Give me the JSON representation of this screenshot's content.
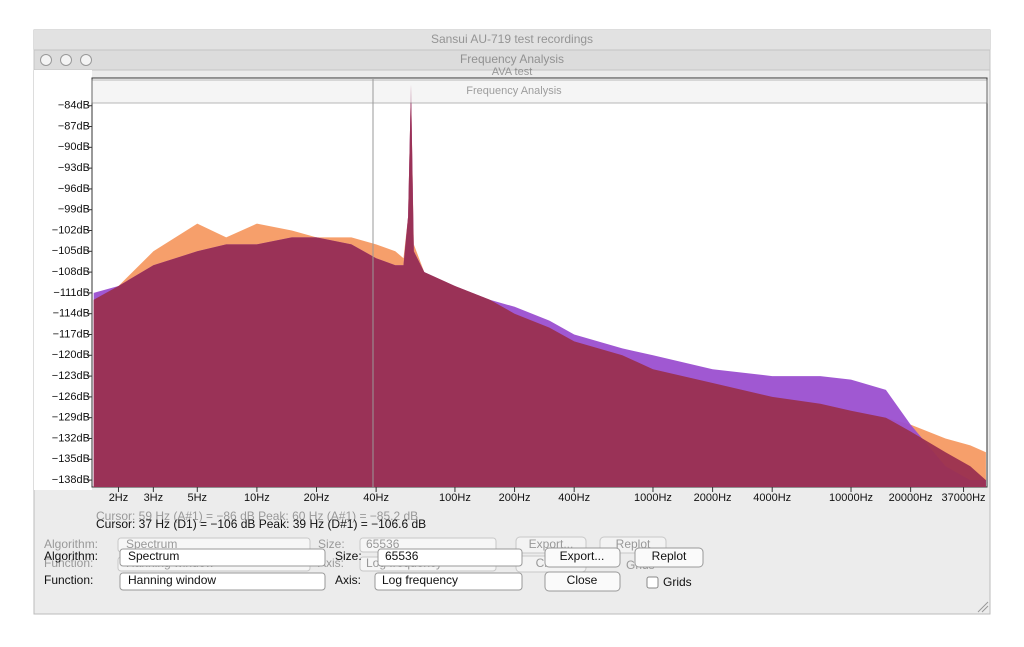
{
  "windows": {
    "main_title": "Sansui AU-719 test recordings",
    "analysis_title": "Frequency Analysis",
    "back_title": "AVA test",
    "inner_title": "Frequency Analysis"
  },
  "chart_data": {
    "type": "area",
    "x_scale": "log",
    "xlim": [
      1.47,
      48600
    ],
    "ylim": [
      -139,
      -80
    ],
    "xticks": [
      {
        "value": 2,
        "label": "2Hz"
      },
      {
        "value": 3,
        "label": "3Hz"
      },
      {
        "value": 5,
        "label": "5Hz"
      },
      {
        "value": 10,
        "label": "10Hz"
      },
      {
        "value": 20,
        "label": "20Hz"
      },
      {
        "value": 40,
        "label": "40Hz"
      },
      {
        "value": 100,
        "label": "100Hz"
      },
      {
        "value": 200,
        "label": "200Hz"
      },
      {
        "value": 400,
        "label": "400Hz"
      },
      {
        "value": 1000,
        "label": "1000Hz"
      },
      {
        "value": 2000,
        "label": "2000Hz"
      },
      {
        "value": 4000,
        "label": "4000Hz"
      },
      {
        "value": 10000,
        "label": "10000Hz"
      },
      {
        "value": 20000,
        "label": "20000Hz"
      },
      {
        "value": 37000,
        "label": "37000Hz"
      }
    ],
    "yticks": [
      {
        "value": -84,
        "label": "−84dB"
      },
      {
        "value": -87,
        "label": "−87dB"
      },
      {
        "value": -90,
        "label": "−90dB"
      },
      {
        "value": -93,
        "label": "−93dB"
      },
      {
        "value": -96,
        "label": "−96dB"
      },
      {
        "value": -99,
        "label": "−99dB"
      },
      {
        "value": -102,
        "label": "−102dB"
      },
      {
        "value": -105,
        "label": "−105dB"
      },
      {
        "value": -108,
        "label": "−108dB"
      },
      {
        "value": -111,
        "label": "−111dB"
      },
      {
        "value": -114,
        "label": "−114dB"
      },
      {
        "value": -117,
        "label": "−117dB"
      },
      {
        "value": -120,
        "label": "−120dB"
      },
      {
        "value": -123,
        "label": "−123dB"
      },
      {
        "value": -126,
        "label": "−126dB"
      },
      {
        "value": -129,
        "label": "−129dB"
      },
      {
        "value": -132,
        "label": "−132dB"
      },
      {
        "value": -135,
        "label": "−135dB"
      },
      {
        "value": -138,
        "label": "−138dB"
      }
    ],
    "x": [
      1.5,
      2,
      3,
      5,
      7,
      10,
      15,
      20,
      30,
      40,
      50,
      55,
      58,
      60,
      62,
      70,
      100,
      150,
      200,
      300,
      400,
      700,
      1000,
      2000,
      4000,
      7000,
      10000,
      15000,
      20000,
      30000,
      40000,
      48000
    ],
    "series": [
      {
        "color": "#f59a63",
        "values": [
          -112,
          -110,
          -105,
          -101,
          -103,
          -101,
          -102,
          -103,
          -103,
          -104,
          -105,
          -106,
          -100,
          -81,
          -104,
          -108,
          -110,
          -112,
          -114,
          -116,
          -118,
          -120,
          -122,
          -124,
          -126,
          -127,
          -128,
          -129,
          -130,
          -132,
          -133,
          -134
        ]
      },
      {
        "color": "#9b4fd0",
        "values": [
          -111,
          -110,
          -107,
          -105,
          -104,
          -104,
          -103,
          -103,
          -104,
          -106,
          -107,
          -107,
          -100,
          -81,
          -105,
          -108,
          -110,
          -112,
          -113,
          -115,
          -117,
          -119,
          -120,
          -122,
          -123,
          -123,
          -123.5,
          -125,
          -130,
          -136,
          -138,
          -138
        ]
      },
      {
        "color": "#9a3050",
        "values": [
          -112,
          -110,
          -107,
          -105,
          -104,
          -104,
          -103,
          -103,
          -104,
          -106,
          -107,
          -107,
          -100,
          -81,
          -105,
          -108,
          -110,
          -112,
          -114,
          -116,
          -118,
          -120,
          -122,
          -124,
          -126,
          -127,
          -128,
          -129,
          -131,
          -134,
          -136,
          -138
        ]
      }
    ]
  },
  "cursor_back": "Cursor: 59 Hz (A#1) = −86 dB    Peak: 60 Hz (A#1) = −85.2 dB",
  "cursor": "Cursor: 37 Hz (D1) = −106 dB    Peak: 39 Hz (D#1) = −106.6 dB",
  "controls": {
    "algorithm_label": "Algorithm:",
    "algorithm": "Spectrum",
    "size_label": "Size:",
    "size": "65536",
    "export": "Export...",
    "replot": "Replot",
    "function_label": "Function:",
    "function": "Hanning window",
    "axis_label": "Axis:",
    "axis": "Log frequency",
    "close": "Close",
    "grids": "Grids"
  }
}
